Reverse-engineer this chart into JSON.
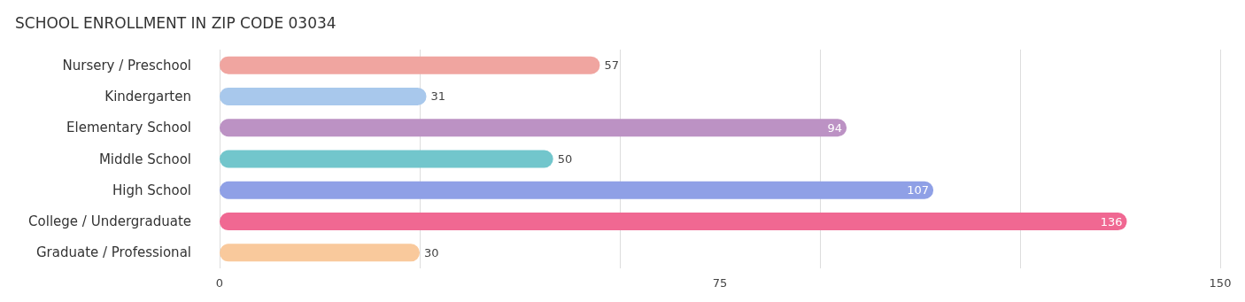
{
  "chart_data": {
    "type": "bar",
    "orientation": "horizontal",
    "title": "SCHOOL ENROLLMENT IN ZIP CODE 03034",
    "categories": [
      "Nursery / Preschool",
      "Kindergarten",
      "Elementary School",
      "Middle School",
      "High School",
      "College / Undergraduate",
      "Graduate / Professional"
    ],
    "values": [
      57,
      31,
      94,
      50,
      107,
      136,
      30
    ],
    "colors": [
      "#f0a5a0",
      "#a8c8ec",
      "#bc92c4",
      "#72c6cc",
      "#8fa0e6",
      "#f06892",
      "#f9c99c"
    ],
    "xlim": [
      0,
      150
    ],
    "xticks": [
      0,
      75,
      150
    ],
    "grid": "x",
    "data_labels": true
  }
}
